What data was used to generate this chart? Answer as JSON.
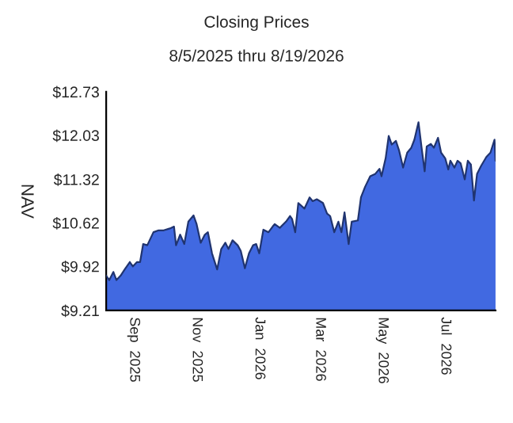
{
  "chart_data": {
    "type": "area",
    "title": "Closing Prices",
    "subtitle": "8/5/2025 thru 8/19/2026",
    "ylabel": "NAV",
    "x": [
      "2025-08-05",
      "2025-08-08",
      "2025-08-12",
      "2025-08-15",
      "2025-08-19",
      "2025-08-23",
      "2025-08-28",
      "2025-08-31",
      "2025-09-04",
      "2025-09-07",
      "2025-09-10",
      "2025-09-14",
      "2025-09-20",
      "2025-09-25",
      "2025-09-30",
      "2025-10-06",
      "2025-10-10",
      "2025-10-12",
      "2025-10-16",
      "2025-10-20",
      "2025-10-24",
      "2025-10-29",
      "2025-11-01",
      "2025-11-05",
      "2025-11-09",
      "2025-11-12",
      "2025-11-16",
      "2025-11-21",
      "2025-11-25",
      "2025-11-29",
      "2025-12-02",
      "2025-12-06",
      "2025-12-11",
      "2025-12-14",
      "2025-12-18",
      "2025-12-22",
      "2025-12-26",
      "2025-12-29",
      "2026-01-01",
      "2026-01-05",
      "2026-01-10",
      "2026-01-14",
      "2026-01-16",
      "2026-01-21",
      "2026-01-27",
      "2026-01-31",
      "2026-02-02",
      "2026-02-05",
      "2026-02-08",
      "2026-02-14",
      "2026-02-19",
      "2026-02-22",
      "2026-02-26",
      "2026-03-04",
      "2026-03-08",
      "2026-03-11",
      "2026-03-15",
      "2026-03-19",
      "2026-03-22",
      "2026-03-25",
      "2026-03-29",
      "2026-04-01",
      "2026-04-07",
      "2026-04-10",
      "2026-04-14",
      "2026-04-19",
      "2026-04-24",
      "2026-04-28",
      "2026-04-30",
      "2026-05-04",
      "2026-05-07",
      "2026-05-10",
      "2026-05-14",
      "2026-05-17",
      "2026-05-21",
      "2026-05-25",
      "2026-05-29",
      "2026-06-01",
      "2026-06-05",
      "2026-06-08",
      "2026-06-11",
      "2026-06-13",
      "2026-06-17",
      "2026-06-20",
      "2026-06-24",
      "2026-06-27",
      "2026-07-01",
      "2026-07-04",
      "2026-07-06",
      "2026-07-10",
      "2026-07-13",
      "2026-07-16",
      "2026-07-20",
      "2026-07-23",
      "2026-07-26",
      "2026-07-29",
      "2026-08-01",
      "2026-08-05",
      "2026-08-10",
      "2026-08-14",
      "2026-08-18",
      "2026-08-19"
    ],
    "series": [
      {
        "color": "#4169e1",
        "values": [
          9.77,
          9.7,
          9.83,
          9.7,
          9.77,
          9.87,
          9.99,
          9.92,
          9.99,
          9.99,
          10.28,
          10.26,
          10.47,
          10.5,
          10.5,
          10.53,
          10.56,
          10.26,
          10.43,
          10.28,
          10.64,
          10.74,
          10.6,
          10.3,
          10.43,
          10.47,
          10.13,
          9.87,
          10.2,
          10.3,
          10.2,
          10.34,
          10.26,
          10.17,
          9.89,
          10.13,
          10.26,
          10.28,
          10.13,
          10.51,
          10.47,
          10.56,
          10.6,
          10.54,
          10.64,
          10.73,
          10.68,
          10.47,
          10.94,
          10.85,
          11.03,
          10.97,
          11.0,
          10.94,
          10.77,
          10.73,
          10.47,
          10.64,
          10.47,
          10.79,
          10.28,
          10.64,
          10.66,
          11.03,
          11.2,
          11.37,
          11.41,
          11.49,
          11.37,
          11.66,
          12.02,
          11.88,
          11.94,
          11.79,
          11.51,
          11.75,
          11.83,
          11.96,
          12.24,
          11.83,
          11.45,
          11.85,
          11.89,
          11.83,
          11.99,
          11.75,
          11.66,
          11.48,
          11.62,
          11.51,
          11.62,
          11.58,
          11.32,
          11.62,
          11.56,
          10.98,
          11.41,
          11.54,
          11.68,
          11.75,
          11.96,
          11.62
        ]
      }
    ],
    "xlim": [
      "2025-08-05",
      "2026-08-19"
    ],
    "xticks": [
      {
        "value": "2025-09-01",
        "label": "Sep  2025"
      },
      {
        "value": "2025-11-01",
        "label": "Nov  2025"
      },
      {
        "value": "2026-01-01",
        "label": "Jan  2026"
      },
      {
        "value": "2026-03-01",
        "label": "Mar  2026"
      },
      {
        "value": "2026-05-01",
        "label": "May  2026"
      },
      {
        "value": "2026-07-01",
        "label": "Jul  2026"
      }
    ],
    "ylim": [
      9.21,
      12.73
    ],
    "yticks": [
      {
        "value": 9.21,
        "label": "$9.21"
      },
      {
        "value": 9.92,
        "label": "$9.92"
      },
      {
        "value": 10.62,
        "label": "$10.62"
      },
      {
        "value": 11.32,
        "label": "$11.32"
      },
      {
        "value": 12.03,
        "label": "$12.03"
      },
      {
        "value": 12.73,
        "label": "$12.73"
      }
    ],
    "grid": false
  }
}
